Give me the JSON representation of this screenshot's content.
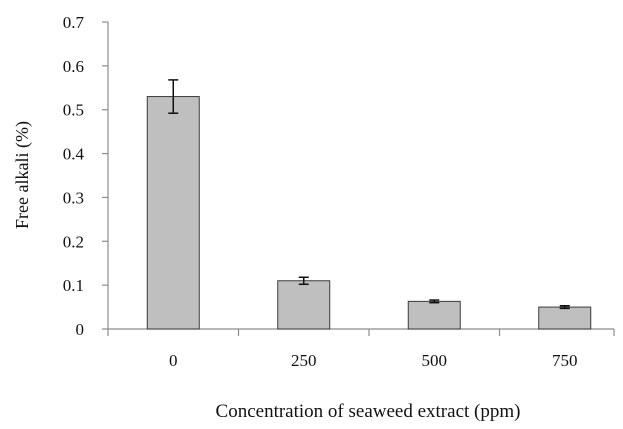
{
  "chart_data": {
    "type": "bar",
    "title": "",
    "xlabel": "Concentration of seaweed extract (ppm)",
    "ylabel": "Free alkali (%)",
    "categories": [
      "0",
      "250",
      "500",
      "750"
    ],
    "values": [
      0.53,
      0.11,
      0.063,
      0.05
    ],
    "error_bars": [
      0.038,
      0.008,
      0.003,
      0.003
    ],
    "ylim": [
      0,
      0.7
    ],
    "yticks": [
      "0",
      "0.1",
      "0.2",
      "0.3",
      "0.4",
      "0.5",
      "0.6",
      "0.7"
    ],
    "grid": false,
    "legend": "none",
    "colors": {
      "bar_fill": "#bfbfbf",
      "bar_stroke": "#3a3a3a",
      "axis": "#8c8c8c",
      "error_bar": "#111111"
    }
  }
}
